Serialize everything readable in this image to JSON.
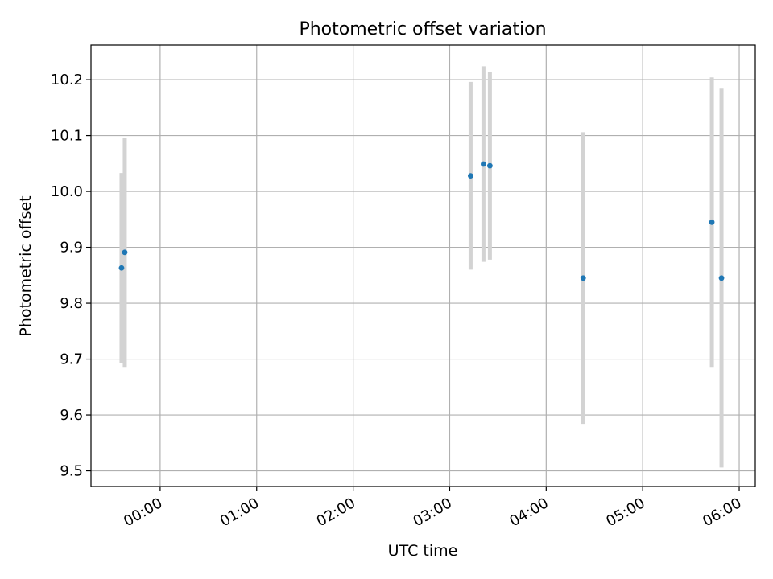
{
  "chart_data": {
    "type": "scatter",
    "title": "Photometric offset variation",
    "xlabel": "UTC time",
    "ylabel": "Photometric offset",
    "grid": true,
    "legend": "none",
    "xlim": [
      "-0:43",
      "6:10"
    ],
    "ylim": [
      9.472,
      10.262
    ],
    "x_ticks": [
      "00:00",
      "01:00",
      "02:00",
      "03:00",
      "04:00",
      "05:00",
      "06:00"
    ],
    "y_ticks": [
      "9.5",
      "9.6",
      "9.7",
      "9.8",
      "9.9",
      "10.0",
      "10.1",
      "10.2"
    ],
    "series": [
      {
        "points": [
          {
            "x": "-0:24",
            "y": 9.863,
            "ylow": 9.693,
            "yhigh": 10.033
          },
          {
            "x": "-0:22",
            "y": 9.891,
            "ylow": 9.686,
            "yhigh": 10.096
          },
          {
            "x": "3:13",
            "y": 10.028,
            "ylow": 9.86,
            "yhigh": 10.196
          },
          {
            "x": "3:21",
            "y": 10.049,
            "ylow": 9.874,
            "yhigh": 10.224
          },
          {
            "x": "3:25",
            "y": 10.046,
            "ylow": 9.878,
            "yhigh": 10.214
          },
          {
            "x": "4:23",
            "y": 9.845,
            "ylow": 9.584,
            "yhigh": 10.106
          },
          {
            "x": "5:43",
            "y": 9.945,
            "ylow": 9.686,
            "yhigh": 10.204
          },
          {
            "x": "5:49",
            "y": 9.845,
            "ylow": 9.506,
            "yhigh": 10.184
          }
        ]
      }
    ],
    "colors": {
      "marker": "#1f77b4",
      "errorbar": "#d3d3d3",
      "grid": "#b0b0b0",
      "axes": "#000000"
    }
  }
}
